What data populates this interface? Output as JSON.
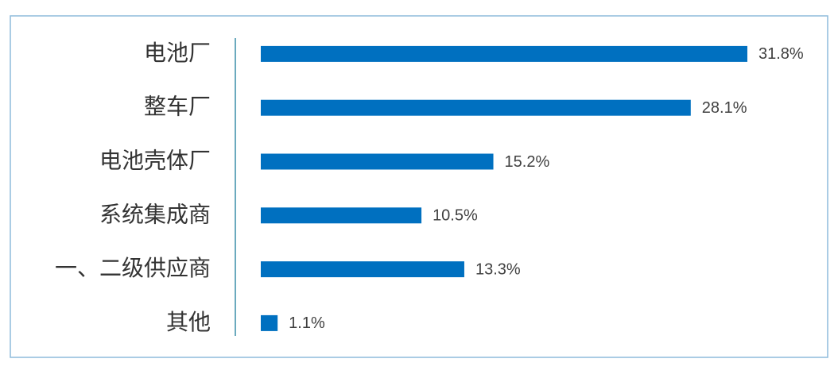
{
  "chart_data": {
    "type": "bar",
    "orientation": "horizontal",
    "categories": [
      "电池厂",
      "整车厂",
      "电池壳体厂",
      "系统集成商",
      "一、二级供应商",
      "其他"
    ],
    "values": [
      31.8,
      28.1,
      15.2,
      10.5,
      13.3,
      1.1
    ],
    "value_labels": [
      "31.8%",
      "28.1%",
      "15.2%",
      "10.5%",
      "13.3%",
      "1.1%"
    ],
    "color": "#0070c0"
  }
}
